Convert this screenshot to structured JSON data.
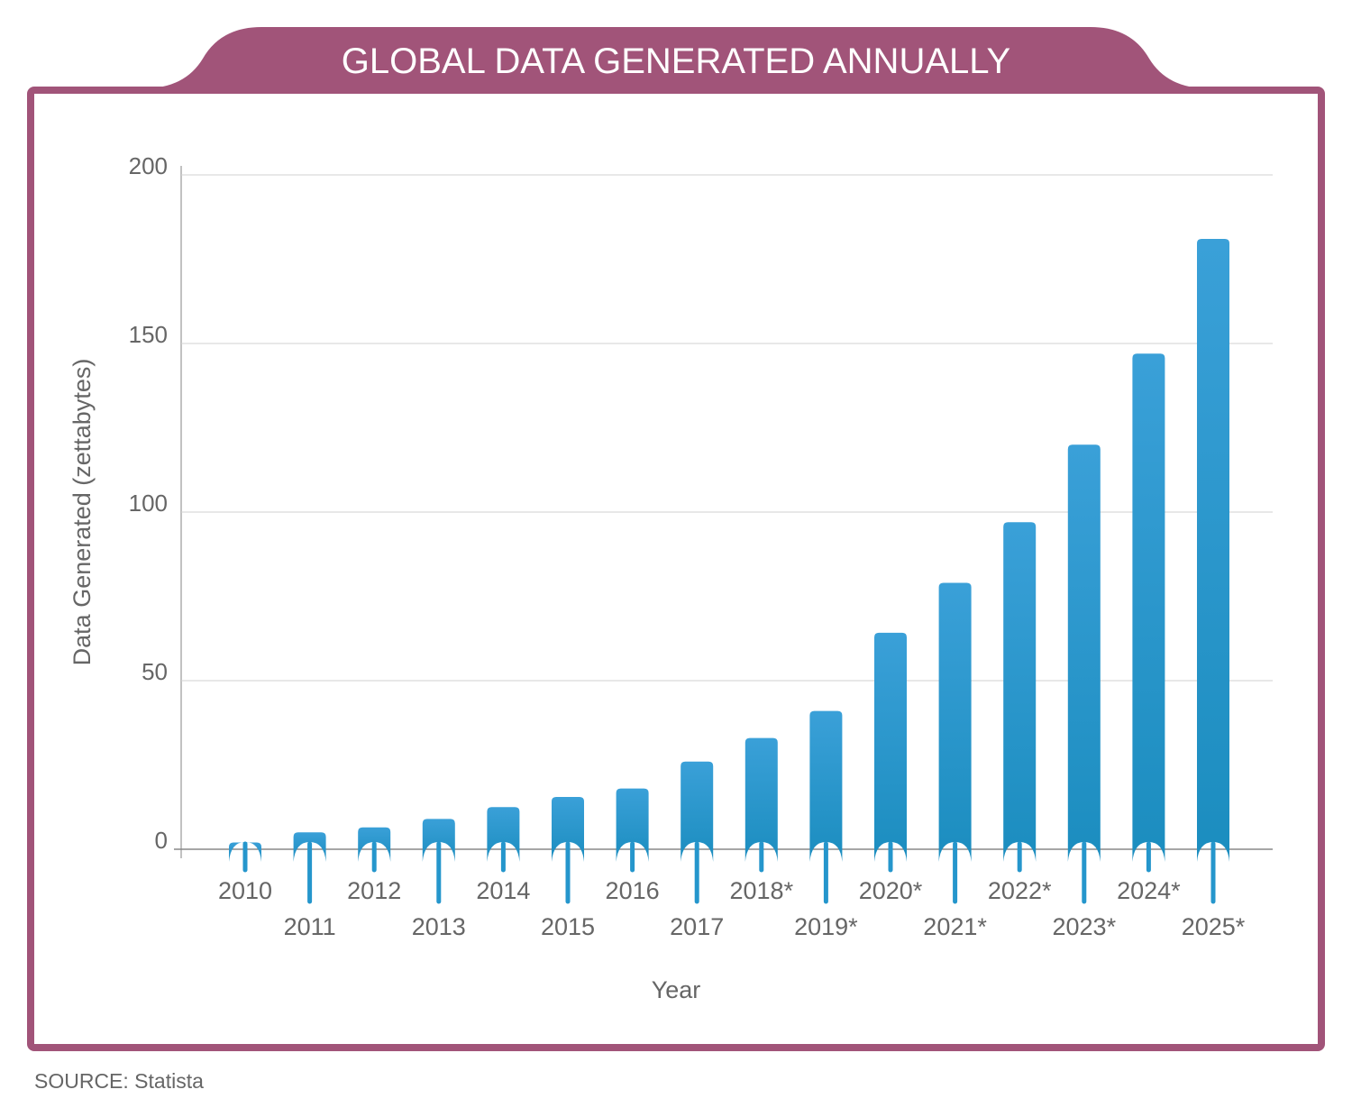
{
  "chart_data": {
    "type": "bar",
    "title": "GLOBAL DATA GENERATED ANNUALLY",
    "xlabel": "Year",
    "ylabel": "Data Generated (zettabytes)",
    "ylim": [
      0,
      200
    ],
    "yticks": [
      0,
      50,
      100,
      150,
      200
    ],
    "grid": true,
    "categories": [
      "2010",
      "2011",
      "2012",
      "2013",
      "2014",
      "2015",
      "2016",
      "2017",
      "2018*",
      "2019*",
      "2020*",
      "2021*",
      "2022*",
      "2023*",
      "2024*",
      "2025*"
    ],
    "values": [
      2,
      5,
      6.5,
      9,
      12.5,
      15.5,
      18,
      26,
      33,
      41,
      64.2,
      79,
      97,
      120,
      147,
      181
    ],
    "colors": {
      "frame": "#a15479",
      "bar_top": "#3aa0d8",
      "bar_bottom": "#1b8dbf",
      "text": "#666666"
    }
  },
  "source": "SOURCE: Statista"
}
